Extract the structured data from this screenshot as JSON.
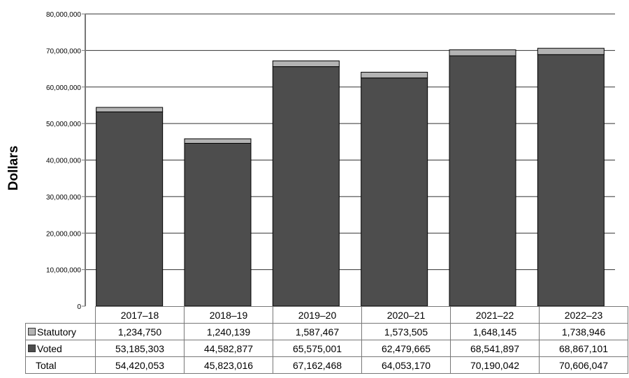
{
  "chart_data": {
    "type": "bar",
    "stacked": true,
    "ylabel": "Dollars",
    "ylim": [
      0,
      80000000
    ],
    "yticks": [
      "0",
      "10,000,000",
      "20,000,000",
      "30,000,000",
      "40,000,000",
      "50,000,000",
      "60,000,000",
      "70,000,000",
      "80,000,000"
    ],
    "grid": true,
    "categories": [
      "2017–18",
      "2018–19",
      "2019–20",
      "2020–21",
      "2021–22",
      "2022–23"
    ],
    "series": [
      {
        "name": "Voted",
        "color": "#4d4d4d",
        "values": [
          53185303,
          44582877,
          65575001,
          62479665,
          68541897,
          68867101
        ],
        "labels": [
          "53,185,303",
          "44,582,877",
          "65,575,001",
          "62,479,665",
          "68,541,897",
          "68,867,101"
        ]
      },
      {
        "name": "Statutory",
        "color": "#b3b3b3",
        "values": [
          1234750,
          1240139,
          1587467,
          1573505,
          1648145,
          1738946
        ],
        "labels": [
          "1,234,750",
          "1,240,139",
          "1,587,467",
          "1,573,505",
          "1,648,145",
          "1,738,946"
        ]
      }
    ],
    "total_label": "Total",
    "totals": [
      "54,420,053",
      "45,823,016",
      "67,162,468",
      "64,053,170",
      "70,190,042",
      "70,606,047"
    ]
  }
}
